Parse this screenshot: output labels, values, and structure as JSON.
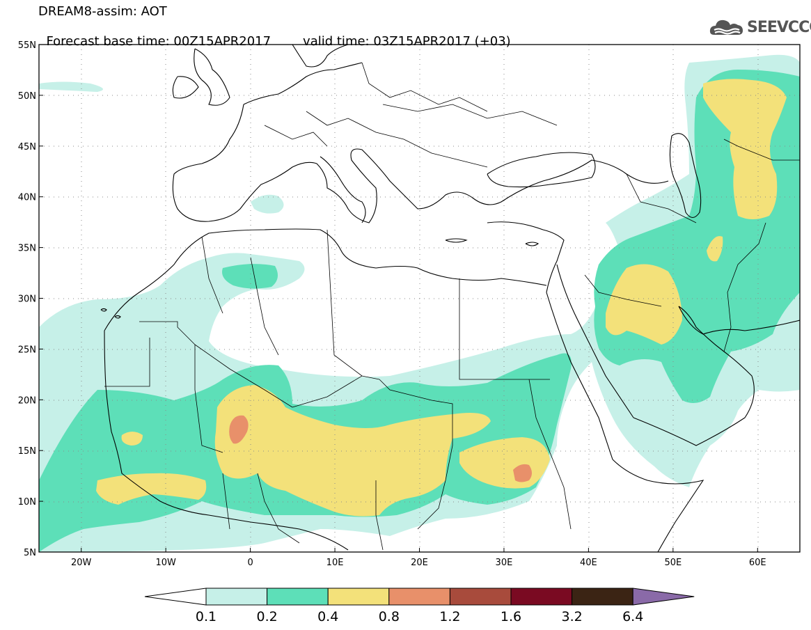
{
  "title": {
    "line1": "DREAM8-assim: AOT",
    "base_time": "Forecast base time: 00Z15APR2017",
    "valid_time": "valid time: 03Z15APR2017 (+03)"
  },
  "logo": {
    "text": "SEEVCCC",
    "icon": "cloud-icon"
  },
  "map": {
    "lon_range": [
      -25,
      65
    ],
    "lat_range": [
      5,
      55
    ],
    "lat_ticks": [
      {
        "value": 55,
        "label": "55N"
      },
      {
        "value": 50,
        "label": "50N"
      },
      {
        "value": 45,
        "label": "45N"
      },
      {
        "value": 40,
        "label": "40N"
      },
      {
        "value": 35,
        "label": "35N"
      },
      {
        "value": 30,
        "label": "30N"
      },
      {
        "value": 25,
        "label": "25N"
      },
      {
        "value": 20,
        "label": "20N"
      },
      {
        "value": 15,
        "label": "15N"
      },
      {
        "value": 10,
        "label": "10N"
      },
      {
        "value": 5,
        "label": "5N"
      }
    ],
    "lon_ticks": [
      {
        "value": -20,
        "label": "20W"
      },
      {
        "value": -10,
        "label": "10W"
      },
      {
        "value": 0,
        "label": "0"
      },
      {
        "value": 10,
        "label": "10E"
      },
      {
        "value": 20,
        "label": "20E"
      },
      {
        "value": 30,
        "label": "30E"
      },
      {
        "value": 40,
        "label": "40E"
      },
      {
        "value": 50,
        "label": "50E"
      },
      {
        "value": 60,
        "label": "60E"
      }
    ]
  },
  "colorbar": {
    "levels": [
      "0.1",
      "0.2",
      "0.4",
      "0.8",
      "1.2",
      "1.6",
      "3.2",
      "6.4"
    ],
    "colors": [
      "#c6f0e8",
      "#5ddfb8",
      "#f3e17a",
      "#e8906a",
      "#a84b3c",
      "#7a0a22",
      "#3b2414"
    ],
    "under_color": "#ffffff",
    "over_color": "#8a6aa8"
  },
  "colors": {
    "l1": "#c6f0e8",
    "l2": "#5ddfb8",
    "l3": "#f3e17a",
    "l4": "#e8906a"
  }
}
